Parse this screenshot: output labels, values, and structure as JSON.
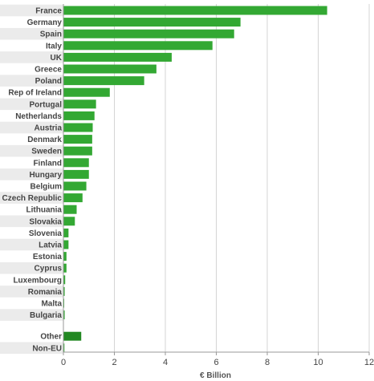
{
  "chart_data": {
    "type": "bar",
    "orientation": "horizontal",
    "categories": [
      "France",
      "Germany",
      "Spain",
      "Italy",
      "UK",
      "Greece",
      "Poland",
      "Rep of Ireland",
      "Portugal",
      "Netherlands",
      "Austria",
      "Denmark",
      "Sweden",
      "Finland",
      "Hungary",
      "Belgium",
      "Czech Republic",
      "Lithuania",
      "Slovakia",
      "Slovenia",
      "Latvia",
      "Estonia",
      "Cyprus",
      "Luxembourg",
      "Romania",
      "Malta",
      "Bulgaria",
      "Other",
      "Non-EU"
    ],
    "values": [
      10.35,
      6.95,
      6.7,
      5.85,
      4.25,
      3.65,
      3.17,
      1.82,
      1.28,
      1.22,
      1.15,
      1.13,
      1.13,
      1.0,
      1.0,
      0.9,
      0.75,
      0.52,
      0.45,
      0.2,
      0.2,
      0.12,
      0.12,
      0.07,
      0.05,
      0.03,
      0.05,
      0.7,
      0.04
    ],
    "gap_before": "Other",
    "xlabel": "€ Billion",
    "ylabel": "",
    "title": "",
    "xlim": [
      0,
      12
    ],
    "xticks": [
      0,
      2,
      4,
      6,
      8,
      10,
      12
    ],
    "grid": true,
    "bar_color": "#33a833",
    "highlight_color": "#228822",
    "highlight_categories": [
      "Other"
    ],
    "stripe_color": "#ebebeb"
  }
}
